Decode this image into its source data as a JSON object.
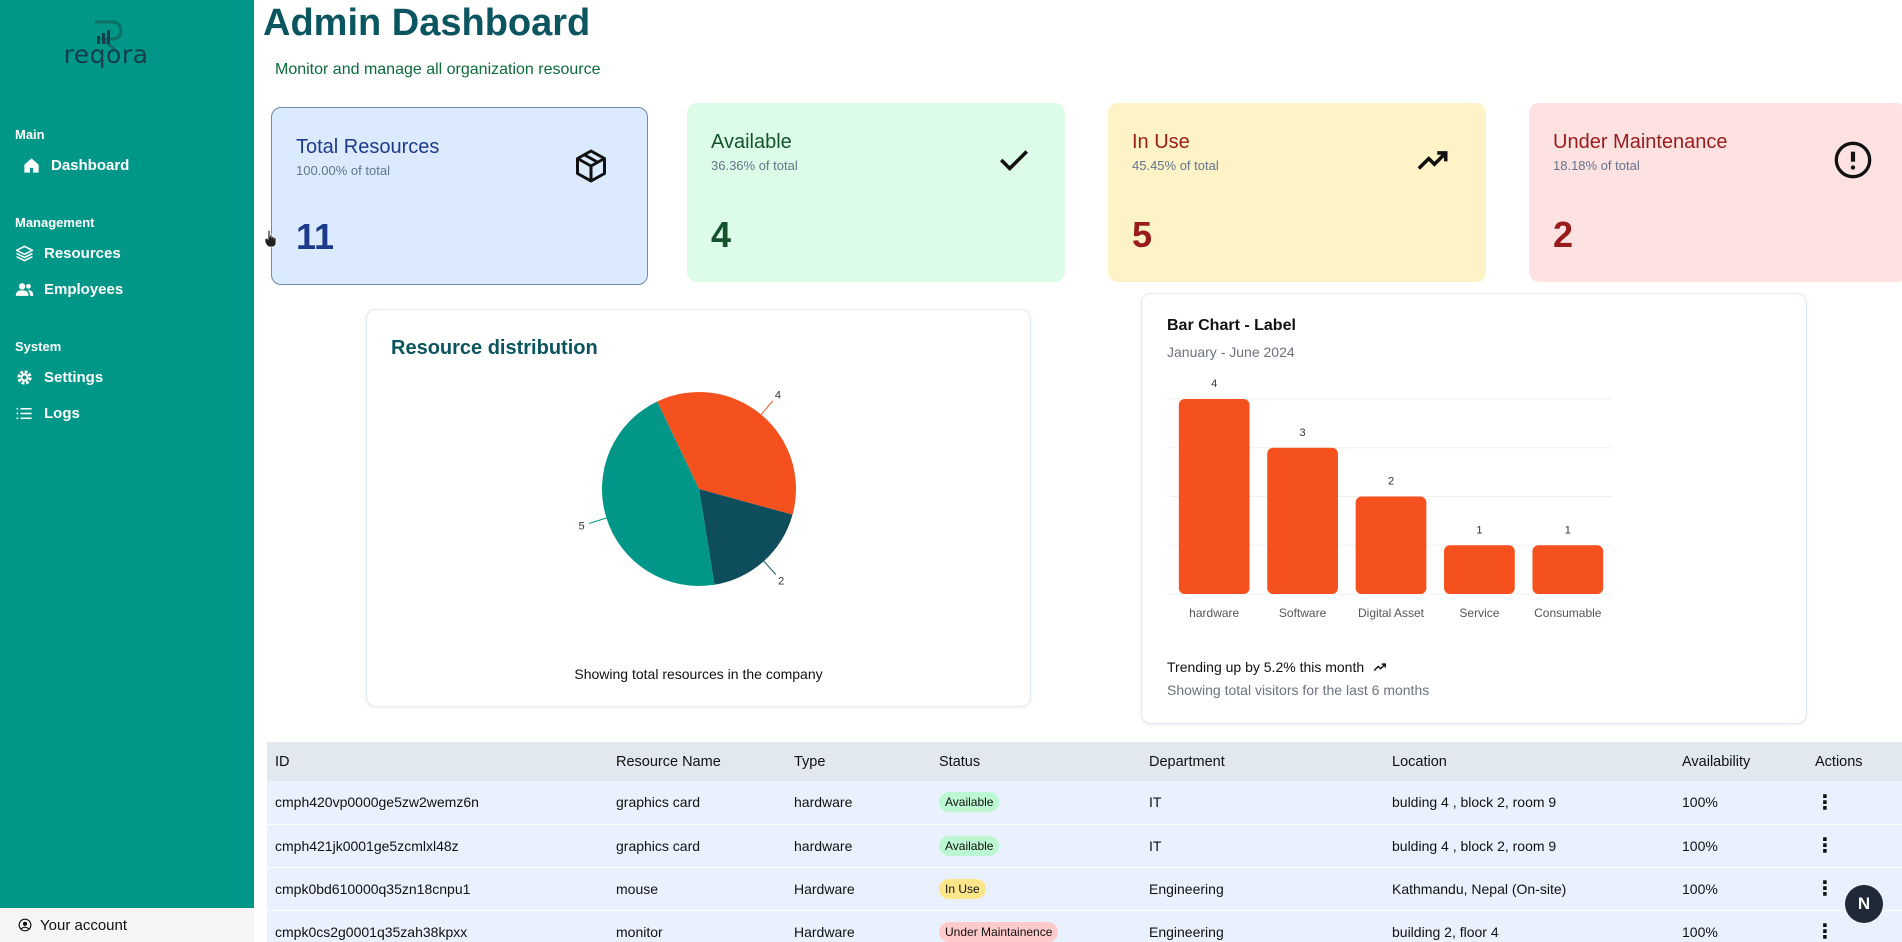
{
  "sidebar": {
    "logo_text": "reqora",
    "sections": [
      {
        "title": "Main",
        "items": [
          {
            "label": "Dashboard",
            "icon": "home-icon"
          }
        ]
      },
      {
        "title": "Management",
        "items": [
          {
            "label": "Resources",
            "icon": "layers-icon"
          },
          {
            "label": "Employees",
            "icon": "users-icon"
          }
        ]
      },
      {
        "title": "System",
        "items": [
          {
            "label": "Settings",
            "icon": "gear-icon"
          },
          {
            "label": "Logs",
            "icon": "list-icon"
          }
        ]
      }
    ],
    "account_label": "Your account"
  },
  "header": {
    "title": "Admin Dashboard",
    "subtitle": "Monitor and manage all organization resource"
  },
  "stats": {
    "total": {
      "label": "Total Resources",
      "pct": "100.00% of total",
      "value": "11"
    },
    "available": {
      "label": "Available",
      "pct": "36.36% of total",
      "value": "4"
    },
    "in_use": {
      "label": "In Use",
      "pct": "45.45% of total",
      "value": "5"
    },
    "maintenance": {
      "label": "Under Maintenance",
      "pct": "18.18% of total",
      "value": "2"
    }
  },
  "pie_card": {
    "title": "Resource distribution",
    "footer": "Showing total resources in the company"
  },
  "bar_card": {
    "title": "Bar Chart - Label",
    "subtitle": "January - June 2024",
    "trend": "Trending up by 5.2% this month",
    "footer": "Showing total visitors for the last 6 months"
  },
  "chart_data": [
    {
      "type": "pie",
      "title": "Resource distribution",
      "slices": [
        {
          "value": 4,
          "color": "#f4511e"
        },
        {
          "value": 2,
          "color": "#0e4d5c"
        },
        {
          "value": 5,
          "color": "#009688"
        }
      ]
    },
    {
      "type": "bar",
      "title": "Bar Chart - Label",
      "subtitle": "January - June 2024",
      "categories": [
        "hardware",
        "Software",
        "Digital Asset",
        "Service",
        "Consumable"
      ],
      "values": [
        4,
        3,
        2,
        1,
        1
      ],
      "ylim": [
        0,
        4
      ],
      "grid": true,
      "color": "#f4511e"
    }
  ],
  "table": {
    "columns": [
      "ID",
      "Resource Name",
      "Type",
      "Status",
      "Department",
      "Location",
      "Availability",
      "Actions"
    ],
    "rows": [
      {
        "id": "cmph420vp0000ge5zw2wemz6n",
        "name": "graphics card",
        "type": "hardware",
        "status": "Available",
        "dept": "IT",
        "location": "bulding 4 , block 2, room 9",
        "availability": "100%"
      },
      {
        "id": "cmph421jk0001ge5zcmlxl48z",
        "name": "graphics card",
        "type": "hardware",
        "status": "Available",
        "dept": "IT",
        "location": "bulding 4 , block 2, room 9",
        "availability": "100%"
      },
      {
        "id": "cmpk0bd610000q35zn18cnpu1",
        "name": "mouse",
        "type": "Hardware",
        "status": "In Use",
        "dept": "Engineering",
        "location": "Kathmandu, Nepal (On-site)",
        "availability": "100%"
      },
      {
        "id": "cmpk0cs2g0001q35zah38kpxx",
        "name": "monitor",
        "type": "Hardware",
        "status": "Under Maintainence",
        "dept": "Engineering",
        "location": "building 2, floor 4",
        "availability": "100%"
      }
    ]
  },
  "floating_badge": "N"
}
